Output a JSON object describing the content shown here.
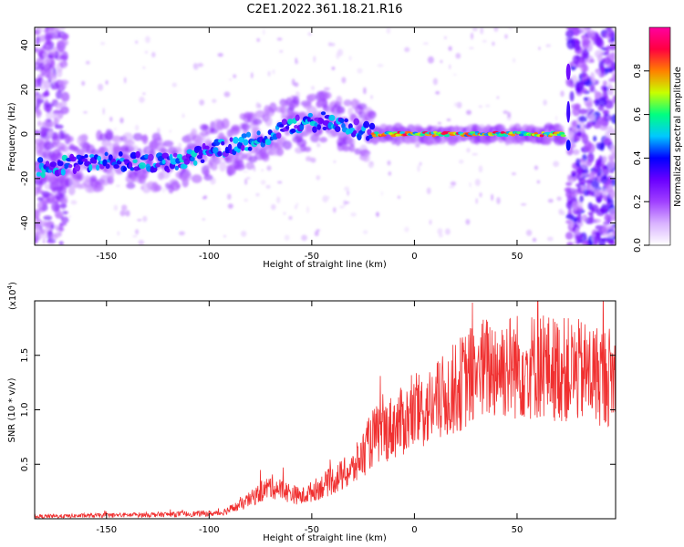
{
  "title": "C2E1.2022.361.18.21.R16",
  "chart_data": [
    {
      "type": "heatmap",
      "xlabel": "Height of straight line (km)",
      "ylabel": "Frequency (Hz)",
      "xlim": [
        -185,
        98
      ],
      "ylim": [
        -50,
        48
      ],
      "x_ticks": [
        -150,
        -100,
        -50,
        0,
        50
      ],
      "y_ticks": [
        -40,
        -20,
        0,
        20,
        40
      ],
      "colorbar": {
        "label": "Normalized spectral amplitude",
        "range": [
          0,
          1
        ],
        "ticks": [
          "0.0",
          "0.2",
          "0.4",
          "0.6",
          "0.8"
        ],
        "colors": [
          "#ffffff",
          "#d9b3ff",
          "#a040ff",
          "#6a00ff",
          "#0000ff",
          "#00c8ff",
          "#00ff80",
          "#c8ff00",
          "#ff8000",
          "#ff0040",
          "#ff00a0"
        ]
      },
      "ridge": [
        {
          "x": -180,
          "y": -15
        },
        {
          "x": -150,
          "y": -12
        },
        {
          "x": -120,
          "y": -13
        },
        {
          "x": -100,
          "y": -8
        },
        {
          "x": -75,
          "y": -2
        },
        {
          "x": -60,
          "y": 4
        },
        {
          "x": -45,
          "y": 6
        },
        {
          "x": -30,
          "y": 3
        },
        {
          "x": -20,
          "y": 0
        },
        {
          "x": 0,
          "y": 0
        },
        {
          "x": 30,
          "y": 0
        },
        {
          "x": 60,
          "y": 0
        },
        {
          "x": 73,
          "y": 0
        }
      ]
    },
    {
      "type": "line",
      "xlabel": "Height of straight line (km)",
      "ylabel": "SNR (10 * v/v)",
      "yscale_label": "(x10",
      "yscale_exp": "4",
      "yscale_close": ")",
      "xlim": [
        -185,
        98
      ],
      "ylim": [
        0,
        2
      ],
      "x_ticks": [
        -150,
        -100,
        -50,
        0,
        50
      ],
      "y_ticks": [
        "0.5",
        "1.0",
        "1.5"
      ],
      "color": "#f03030",
      "trend": [
        {
          "x": -185,
          "y": 0.02
        },
        {
          "x": -120,
          "y": 0.04
        },
        {
          "x": -95,
          "y": 0.05
        },
        {
          "x": -85,
          "y": 0.12
        },
        {
          "x": -70,
          "y": 0.3
        },
        {
          "x": -55,
          "y": 0.2
        },
        {
          "x": -40,
          "y": 0.35
        },
        {
          "x": -30,
          "y": 0.45
        },
        {
          "x": -20,
          "y": 0.75
        },
        {
          "x": -10,
          "y": 0.85
        },
        {
          "x": 0,
          "y": 0.95
        },
        {
          "x": 10,
          "y": 1.05
        },
        {
          "x": 20,
          "y": 1.2
        },
        {
          "x": 30,
          "y": 1.35
        },
        {
          "x": 40,
          "y": 1.4
        },
        {
          "x": 60,
          "y": 1.4
        },
        {
          "x": 80,
          "y": 1.35
        },
        {
          "x": 98,
          "y": 1.3
        }
      ],
      "peak": {
        "x": 60,
        "y": 2.0
      }
    }
  ]
}
